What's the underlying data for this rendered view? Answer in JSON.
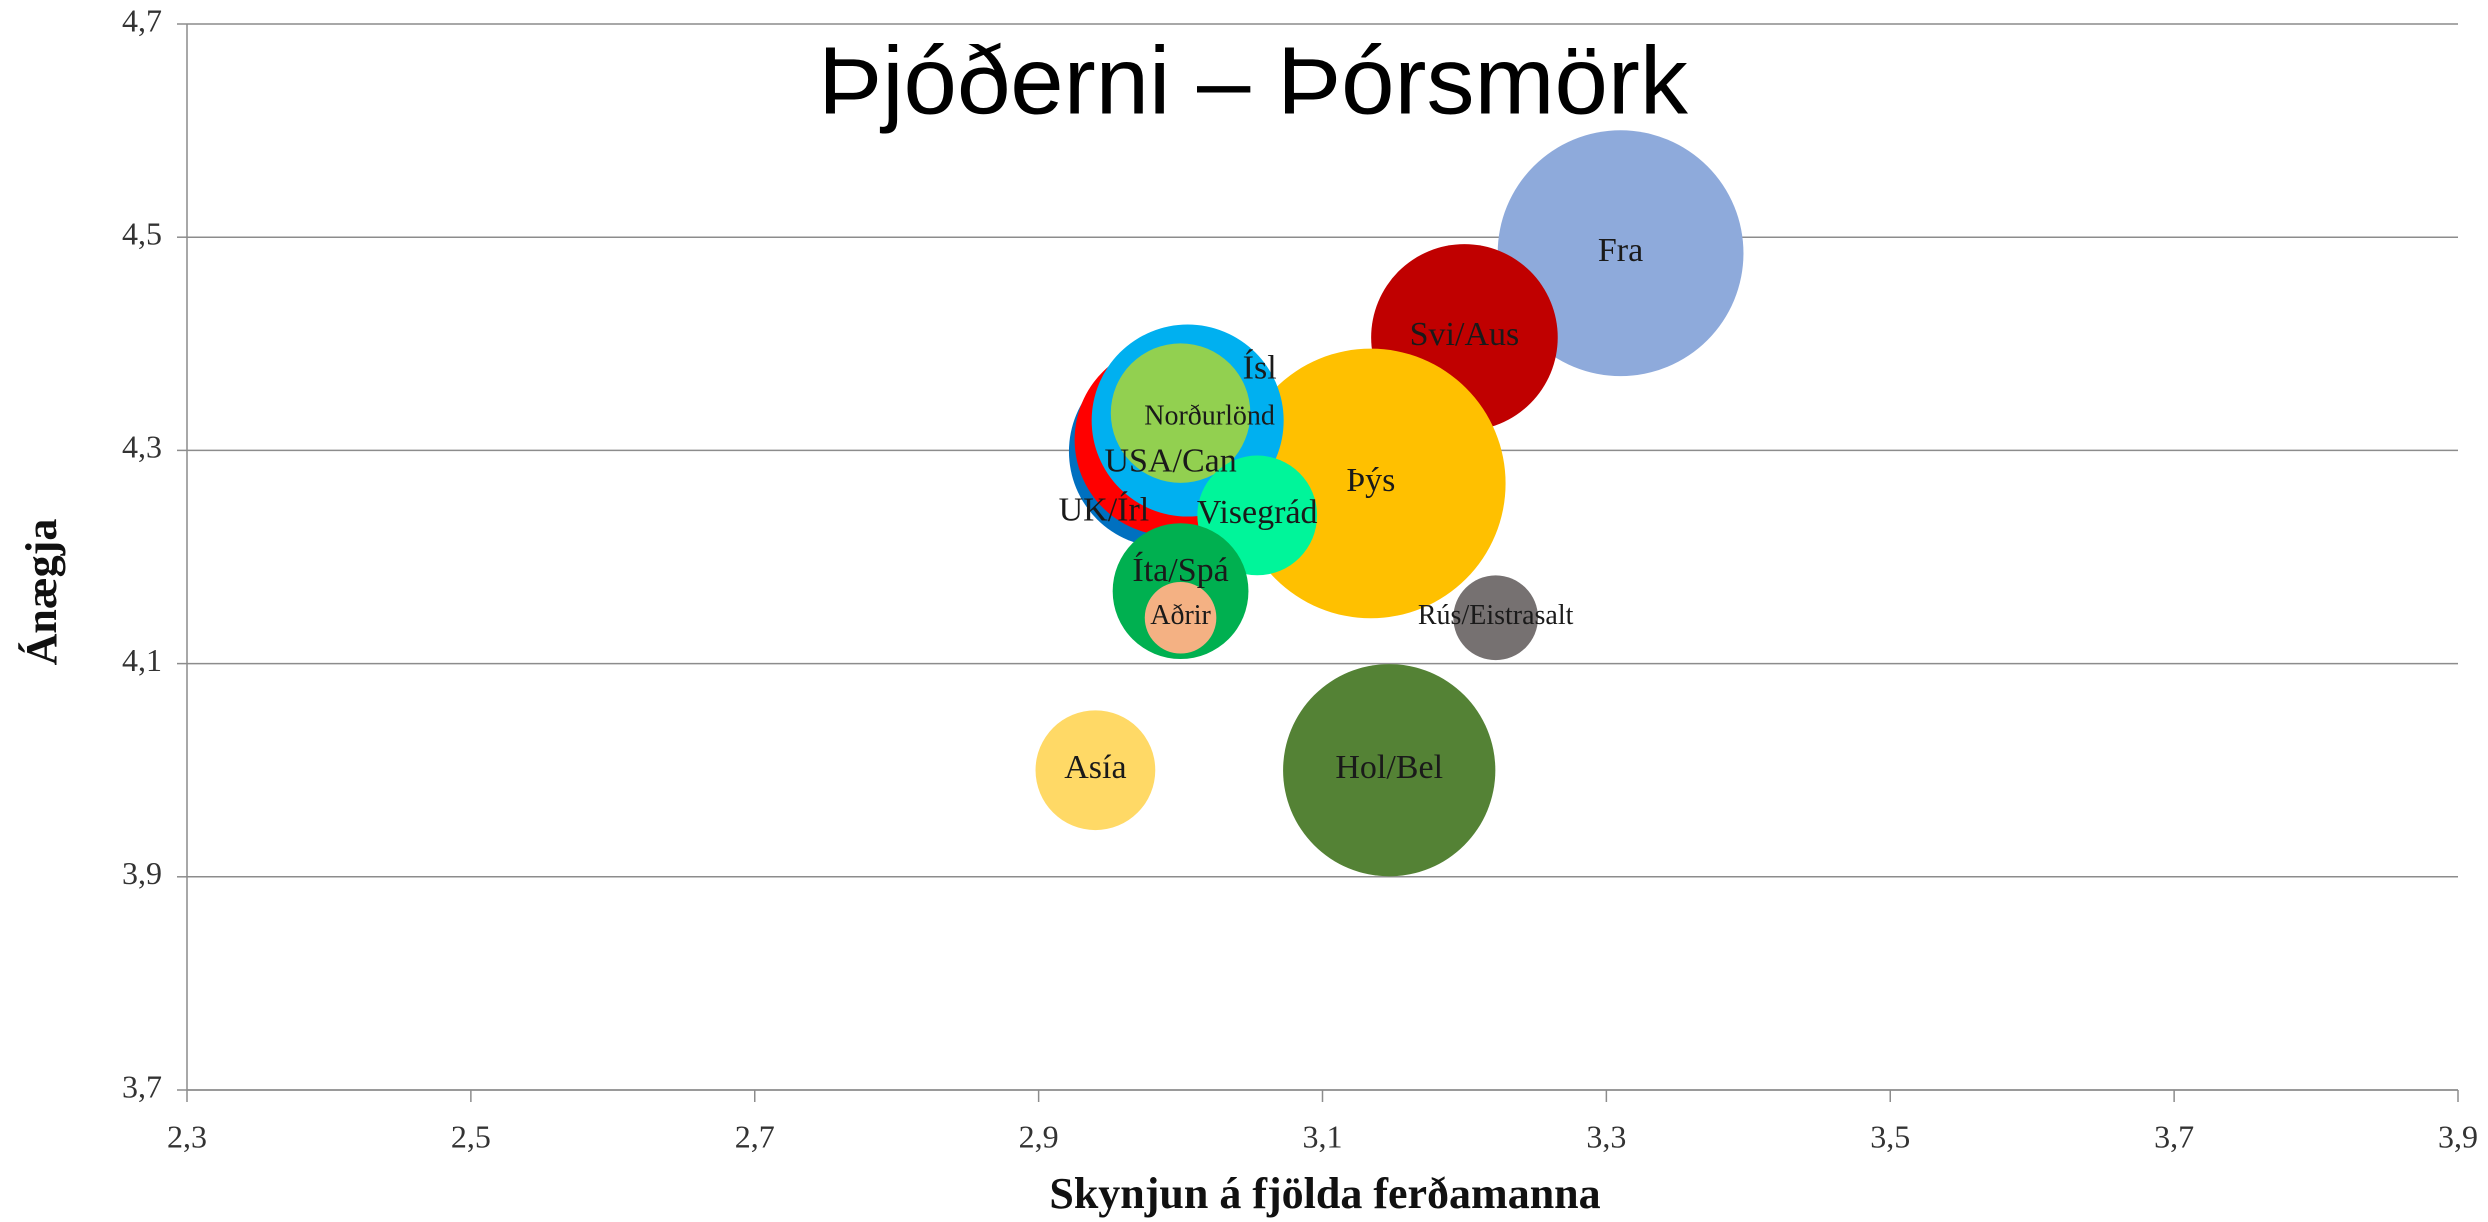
{
  "chart_data": {
    "type": "bubble",
    "title": "Þjóðerni – Þórsmörk",
    "x_label": "Skynjun á fjölda ferðamanna",
    "y_label": "Ánægja",
    "xlim": [
      2.3,
      3.9
    ],
    "xticks": [
      {
        "value": 2.3,
        "label": "2,3"
      },
      {
        "value": 2.5,
        "label": "2,5"
      },
      {
        "value": 2.7,
        "label": "2,7"
      },
      {
        "value": 2.9,
        "label": "2,9"
      },
      {
        "value": 3.1,
        "label": "3,1"
      },
      {
        "value": 3.3,
        "label": "3,3"
      },
      {
        "value": 3.5,
        "label": "3,5"
      },
      {
        "value": 3.7,
        "label": "3,7"
      },
      {
        "value": 3.9,
        "label": "3,9"
      }
    ],
    "ylim": [
      3.7,
      4.7
    ],
    "yticks": [
      {
        "value": 3.7,
        "label": "3,7"
      },
      {
        "value": 3.9,
        "label": "3,9"
      },
      {
        "value": 4.1,
        "label": "4,1"
      },
      {
        "value": 4.3,
        "label": "4,3"
      },
      {
        "value": 4.5,
        "label": "4,5"
      },
      {
        "value": 4.7,
        "label": "4,7"
      }
    ],
    "grid": true,
    "series": [
      {
        "name": "Fra",
        "color": "#8eaadb",
        "x": [
          3.31
        ],
        "values": [
          4.485
        ],
        "sizes": [
          59
        ]
      },
      {
        "name": "Svi/Aus",
        "color": "#c00000",
        "x": [
          3.2
        ],
        "values": [
          4.406
        ],
        "sizes": [
          34
        ]
      },
      {
        "name": "Þýs",
        "color": "#ffc000",
        "x": [
          3.134
        ],
        "values": [
          4.269
        ],
        "sizes": [
          71
        ]
      },
      {
        "name": "UK/Írl",
        "color": "#0070c0",
        "x": [
          2.989
        ],
        "values": [
          4.299
        ],
        "sizes": [
          36
        ]
      },
      {
        "name": "USA/Can",
        "color": "#ff0000",
        "x": [
          2.993
        ],
        "values": [
          4.31
        ],
        "sizes": [
          36
        ]
      },
      {
        "name": "Ísl",
        "color": "#00b0f0",
        "x": [
          3.005
        ],
        "values": [
          4.328
        ],
        "sizes": [
          36
        ]
      },
      {
        "name": "Norðurlönd",
        "color": "#92d050",
        "x": [
          3.0
        ],
        "values": [
          4.335
        ],
        "sizes": [
          19
        ]
      },
      {
        "name": "Visegrád",
        "color": "#00f59a",
        "x": [
          3.054
        ],
        "values": [
          4.239
        ],
        "sizes": [
          14
        ]
      },
      {
        "name": "Íta/Spá",
        "color": "#00b050",
        "x": [
          3.0
        ],
        "values": [
          4.168
        ],
        "sizes": [
          18
        ]
      },
      {
        "name": "Aðrir",
        "color": "#f4b183",
        "x": [
          3.0
        ],
        "values": [
          4.143
        ],
        "sizes": [
          5
        ]
      },
      {
        "name": "Rús/Eistrasalt",
        "color": "#767171",
        "x": [
          3.222
        ],
        "values": [
          4.143
        ],
        "sizes": [
          7
        ]
      },
      {
        "name": "Asía",
        "color": "#ffd966",
        "x": [
          2.94
        ],
        "values": [
          4.0
        ],
        "sizes": [
          14
        ]
      },
      {
        "name": "Hol/Bel",
        "color": "#548235",
        "x": [
          3.147
        ],
        "values": [
          4.0
        ],
        "sizes": [
          44
        ]
      }
    ]
  }
}
